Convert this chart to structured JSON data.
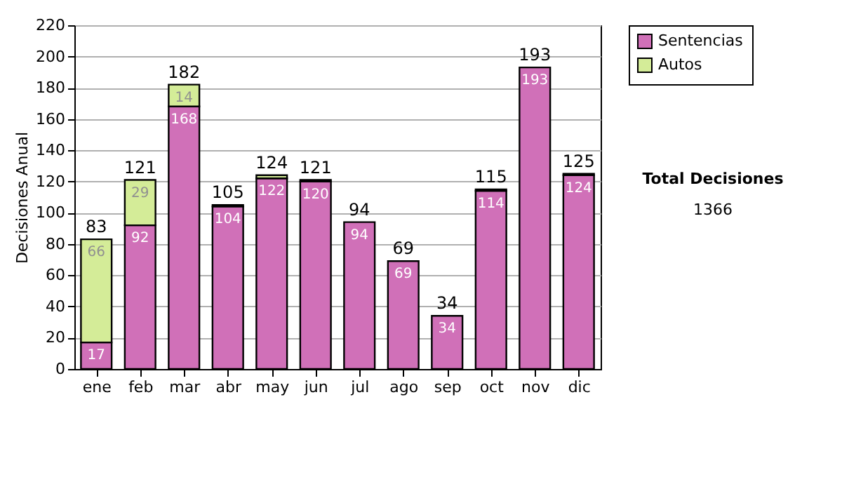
{
  "chart_data": {
    "type": "bar",
    "stacked": true,
    "ylabel": "Decisiones Anual",
    "categories": [
      "ene",
      "feb",
      "mar",
      "abr",
      "may",
      "jun",
      "jul",
      "ago",
      "sep",
      "oct",
      "nov",
      "dic"
    ],
    "series": [
      {
        "name": "Sentencias",
        "color": "#d070b8",
        "values": [
          17,
          92,
          168,
          104,
          122,
          120,
          94,
          69,
          34,
          114,
          193,
          124
        ],
        "value_labels": [
          "17",
          "92",
          "168",
          "104",
          "122",
          "120",
          "94",
          "69",
          "34",
          "114",
          "193",
          "124"
        ]
      },
      {
        "name": "Autos",
        "color": "#d4ec98",
        "values": [
          66,
          29,
          14,
          1,
          2,
          1,
          null,
          null,
          null,
          1,
          null,
          1
        ],
        "value_labels": [
          "66",
          "29",
          "14",
          null,
          null,
          null,
          null,
          null,
          null,
          null,
          null,
          null
        ]
      }
    ],
    "totals": [
      "83",
      "121",
      "182",
      "105",
      "124",
      "121",
      "94",
      "69",
      "34",
      "115",
      "193",
      "125"
    ],
    "ylim": [
      0,
      220
    ],
    "yticks": [
      0,
      20,
      40,
      60,
      80,
      100,
      120,
      140,
      160,
      180,
      200,
      220
    ],
    "grid": "y",
    "legend": "right",
    "annotations": [
      "Total Decisiones",
      "1366"
    ]
  }
}
